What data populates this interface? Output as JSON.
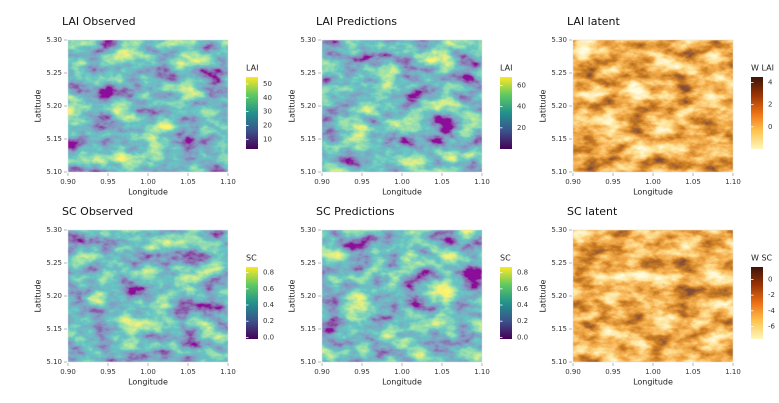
{
  "chart_data": [
    {
      "type": "heatmap",
      "title": "LAI Observed",
      "xlabel": "Longitude",
      "ylabel": "Latitude",
      "xlim": [
        0.9,
        1.1
      ],
      "ylim": [
        5.1,
        5.3
      ],
      "xticks": [
        {
          "value": 0.9,
          "label": "0.90"
        },
        {
          "value": 0.95,
          "label": "0.95"
        },
        {
          "value": 1.0,
          "label": "1.00"
        },
        {
          "value": 1.05,
          "label": "1.05"
        },
        {
          "value": 1.1,
          "label": "1.10"
        }
      ],
      "yticks": [
        {
          "value": 5.1,
          "label": "5.10"
        },
        {
          "value": 5.15,
          "label": "5.15"
        },
        {
          "value": 5.2,
          "label": "5.20"
        },
        {
          "value": 5.25,
          "label": "5.25"
        },
        {
          "value": 5.3,
          "label": "5.30"
        }
      ],
      "colorbar": {
        "label": "LAI",
        "colormap": "viridis",
        "lim": [
          3,
          55
        ],
        "ticks": [
          10,
          20,
          30,
          40,
          50
        ]
      }
    },
    {
      "type": "heatmap",
      "title": "LAI Predictions",
      "xlabel": "Longitude",
      "ylabel": "Latitude",
      "xlim": [
        0.9,
        1.1
      ],
      "ylim": [
        5.1,
        5.3
      ],
      "xticks": [
        {
          "value": 0.9,
          "label": "0.90"
        },
        {
          "value": 0.95,
          "label": "0.95"
        },
        {
          "value": 1.0,
          "label": "1.00"
        },
        {
          "value": 1.05,
          "label": "1.05"
        },
        {
          "value": 1.1,
          "label": "1.10"
        }
      ],
      "yticks": [
        {
          "value": 5.1,
          "label": "5.10"
        },
        {
          "value": 5.15,
          "label": "5.15"
        },
        {
          "value": 5.2,
          "label": "5.20"
        },
        {
          "value": 5.25,
          "label": "5.25"
        },
        {
          "value": 5.3,
          "label": "5.30"
        }
      ],
      "colorbar": {
        "label": "LAI",
        "colormap": "viridis",
        "lim": [
          0,
          68
        ],
        "ticks": [
          20,
          40,
          60
        ]
      }
    },
    {
      "type": "heatmap",
      "title": "LAI latent",
      "xlabel": "Longitude",
      "ylabel": "Latitude",
      "xlim": [
        0.9,
        1.1
      ],
      "ylim": [
        5.1,
        5.3
      ],
      "xticks": [
        {
          "value": 0.9,
          "label": "0.90"
        },
        {
          "value": 0.95,
          "label": "0.95"
        },
        {
          "value": 1.0,
          "label": "1.00"
        },
        {
          "value": 1.05,
          "label": "1.05"
        },
        {
          "value": 1.1,
          "label": "1.10"
        }
      ],
      "yticks": [
        {
          "value": 5.1,
          "label": "5.10"
        },
        {
          "value": 5.15,
          "label": "5.15"
        },
        {
          "value": 5.2,
          "label": "5.20"
        },
        {
          "value": 5.25,
          "label": "5.25"
        },
        {
          "value": 5.3,
          "label": "5.30"
        }
      ],
      "colorbar": {
        "label": "W LAI",
        "colormap": "ylorbr",
        "lim": [
          -2,
          4.5
        ],
        "ticks": [
          4,
          2,
          0
        ]
      }
    },
    {
      "type": "heatmap",
      "title": "SC Observed",
      "xlabel": "Longitude",
      "ylabel": "Latitude",
      "xlim": [
        0.9,
        1.1
      ],
      "ylim": [
        5.1,
        5.3
      ],
      "xticks": [
        {
          "value": 0.9,
          "label": "0.90"
        },
        {
          "value": 0.95,
          "label": "0.95"
        },
        {
          "value": 1.0,
          "label": "1.00"
        },
        {
          "value": 1.05,
          "label": "1.05"
        },
        {
          "value": 1.1,
          "label": "1.10"
        }
      ],
      "yticks": [
        {
          "value": 5.1,
          "label": "5.10"
        },
        {
          "value": 5.15,
          "label": "5.15"
        },
        {
          "value": 5.2,
          "label": "5.20"
        },
        {
          "value": 5.25,
          "label": "5.25"
        },
        {
          "value": 5.3,
          "label": "5.30"
        }
      ],
      "colorbar": {
        "label": "SC",
        "colormap": "viridis",
        "lim": [
          -0.02,
          0.87
        ],
        "ticks": [
          {
            "value": 0.0,
            "label": "0.0"
          },
          0.2,
          0.4,
          0.6,
          0.8
        ]
      }
    },
    {
      "type": "heatmap",
      "title": "SC Predictions",
      "xlabel": "Longitude",
      "ylabel": "Latitude",
      "xlim": [
        0.9,
        1.1
      ],
      "ylim": [
        5.1,
        5.3
      ],
      "xticks": [
        {
          "value": 0.9,
          "label": "0.90"
        },
        {
          "value": 0.95,
          "label": "0.95"
        },
        {
          "value": 1.0,
          "label": "1.00"
        },
        {
          "value": 1.05,
          "label": "1.05"
        },
        {
          "value": 1.1,
          "label": "1.10"
        }
      ],
      "yticks": [
        {
          "value": 5.1,
          "label": "5.10"
        },
        {
          "value": 5.15,
          "label": "5.15"
        },
        {
          "value": 5.2,
          "label": "5.20"
        },
        {
          "value": 5.25,
          "label": "5.25"
        },
        {
          "value": 5.3,
          "label": "5.30"
        }
      ],
      "colorbar": {
        "label": "SC",
        "colormap": "viridis",
        "lim": [
          -0.02,
          0.87
        ],
        "ticks": [
          {
            "value": 0.0,
            "label": "0.0"
          },
          0.2,
          0.4,
          0.6,
          0.8
        ]
      }
    },
    {
      "type": "heatmap",
      "title": "SC latent",
      "xlabel": "Longitude",
      "ylabel": "Latitude",
      "xlim": [
        0.9,
        1.1
      ],
      "ylim": [
        5.1,
        5.3
      ],
      "xticks": [
        {
          "value": 0.9,
          "label": "0.90"
        },
        {
          "value": 0.95,
          "label": "0.95"
        },
        {
          "value": 1.0,
          "label": "1.00"
        },
        {
          "value": 1.05,
          "label": "1.05"
        },
        {
          "value": 1.1,
          "label": "1.10"
        }
      ],
      "yticks": [
        {
          "value": 5.1,
          "label": "5.10"
        },
        {
          "value": 5.15,
          "label": "5.15"
        },
        {
          "value": 5.2,
          "label": "5.20"
        },
        {
          "value": 5.25,
          "label": "5.25"
        },
        {
          "value": 5.3,
          "label": "5.30"
        }
      ],
      "colorbar": {
        "label": "W SC",
        "colormap": "ylorbr",
        "lim": [
          -7.6,
          1.6
        ],
        "ticks": [
          0,
          -2,
          -4,
          -6
        ]
      }
    }
  ]
}
